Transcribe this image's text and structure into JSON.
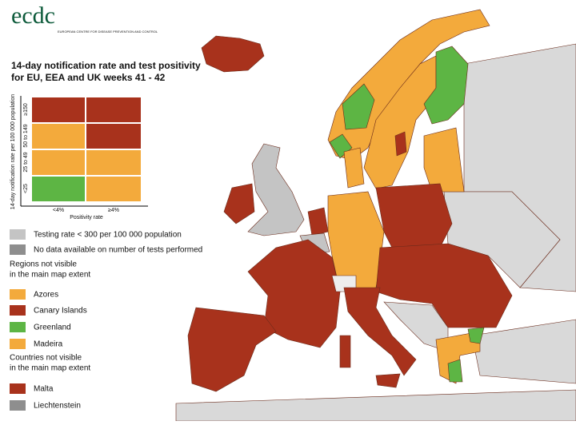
{
  "header": {
    "logo": "ecdc",
    "org": "EUROPEAN CENTRE FOR DISEASE PREVENTION AND CONTROL",
    "title_line1": "14-day notification rate and test positivity",
    "title_line2": "for EU, EEA and UK weeks 41 - 42"
  },
  "matrix": {
    "y_label": "14-day notification rate per 100 000 population",
    "rows": [
      "≥150",
      "50 to 149",
      "25 to 49",
      "<25"
    ],
    "columns": [
      "<4%",
      "≥4%"
    ],
    "x_label": "Positivity rate"
  },
  "legend": {
    "testing_low": "Testing rate < 300 per 100 000 population",
    "no_data": "No data available on number of tests performed",
    "regions_heading_1": "Regions not visible",
    "regions_heading_2": "in the main map extent",
    "regions": [
      "Azores",
      "Canary Islands",
      "Greenland",
      "Madeira"
    ],
    "countries_heading_1": "Countries not visible",
    "countries_heading_2": "in the main map extent",
    "countries": [
      "Malta",
      "Liechtenstein"
    ]
  }
}
